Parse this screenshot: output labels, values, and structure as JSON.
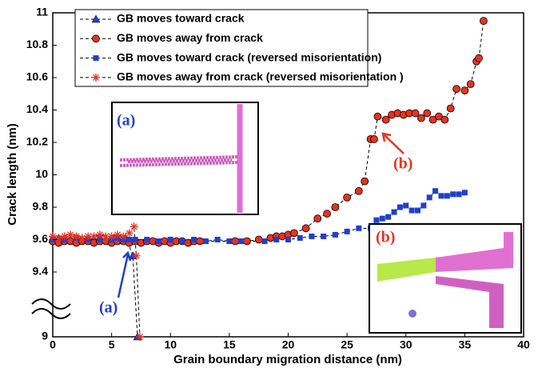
{
  "chart_data": {
    "type": "line",
    "xlabel": "Grain boundary migration distance (nm)",
    "ylabel": "Crack length (nm)",
    "xlim": [
      0,
      40
    ],
    "ylim": [
      9,
      11
    ],
    "xticks": [
      0,
      5,
      10,
      15,
      20,
      25,
      30,
      35,
      40
    ],
    "yticks": [
      9,
      9.4,
      9.6,
      9.8,
      10,
      10.2,
      10.4,
      10.6,
      10.8,
      11
    ],
    "line_color": "#000000",
    "series": [
      {
        "name": "GB moves toward crack",
        "color": "#1f3fd0",
        "marker": "triangle",
        "x": [
          0,
          0.5,
          1,
          1.5,
          2,
          2.5,
          3,
          3.5,
          4,
          4.5,
          5,
          5.5,
          6,
          6.3,
          6.8,
          7.2
        ],
        "values": [
          9.6,
          9.61,
          9.6,
          9.6,
          9.61,
          9.6,
          9.6,
          9.6,
          9.61,
          9.6,
          9.6,
          9.61,
          9.6,
          9.6,
          9.5,
          9.0
        ]
      },
      {
        "name": "GB moves away from crack",
        "color": "#e8321e",
        "marker": "circle",
        "x": [
          0,
          0.5,
          1,
          1.5,
          2,
          2.5,
          3,
          3.5,
          4,
          4.5,
          5,
          5.5,
          6,
          6.5,
          7,
          7.5,
          8,
          8.5,
          9,
          9.5,
          10,
          10.5,
          11,
          11.5,
          12,
          12.5,
          15.5,
          16.5,
          17.5,
          18.5,
          19,
          19.5,
          20,
          20.5,
          21.5,
          22.5,
          23.3,
          24,
          25,
          26,
          26.5,
          27,
          27.3,
          27.6,
          28.3,
          28.8,
          29.3,
          29.8,
          30.3,
          30.8,
          31.3,
          31.8,
          32.3,
          32.8,
          33.3,
          33.8,
          34.3,
          35,
          35.5,
          36,
          36.2,
          36.6
        ],
        "values": [
          9.59,
          9.58,
          9.59,
          9.59,
          9.58,
          9.59,
          9.59,
          9.58,
          9.59,
          9.59,
          9.58,
          9.59,
          9.59,
          9.58,
          9.59,
          9.58,
          9.59,
          9.59,
          9.58,
          9.59,
          9.58,
          9.59,
          9.59,
          9.58,
          9.59,
          9.59,
          9.59,
          9.59,
          9.6,
          9.61,
          9.62,
          9.62,
          9.63,
          9.64,
          9.67,
          9.73,
          9.76,
          9.8,
          9.86,
          9.9,
          9.96,
          10.22,
          10.22,
          10.36,
          10.34,
          10.37,
          10.38,
          10.37,
          10.38,
          10.38,
          10.35,
          10.38,
          10.34,
          10.36,
          10.34,
          10.41,
          10.53,
          10.52,
          10.56,
          10.7,
          10.72,
          10.95
        ]
      },
      {
        "name": "GB moves toward crack (reversed misorientation)",
        "color": "#1f3fd0",
        "marker": "square",
        "x": [
          0,
          1,
          2,
          3,
          4,
          5,
          5.5,
          6,
          6.5,
          7,
          8,
          9,
          10,
          11,
          12,
          13,
          14,
          15,
          16,
          18,
          19,
          20,
          21,
          22,
          23,
          24,
          25,
          26,
          27,
          27.5,
          28,
          28.5,
          29,
          29.5,
          30,
          30.5,
          31,
          31.5,
          32,
          32.5,
          33,
          33.5,
          34,
          34.5,
          35
        ],
        "values": [
          9.6,
          9.6,
          9.61,
          9.6,
          9.6,
          9.6,
          9.61,
          9.6,
          9.6,
          9.6,
          9.6,
          9.59,
          9.6,
          9.59,
          9.6,
          9.59,
          9.6,
          9.59,
          9.59,
          9.59,
          9.6,
          9.6,
          9.61,
          9.62,
          9.62,
          9.63,
          9.65,
          9.67,
          9.67,
          9.72,
          9.73,
          9.74,
          9.77,
          9.8,
          9.81,
          9.78,
          9.78,
          9.81,
          9.86,
          9.9,
          9.87,
          9.87,
          9.88,
          9.88,
          9.89
        ]
      },
      {
        "name": "GB moves away from crack (reversed misorientation )",
        "color": "#e8321e",
        "marker": "star",
        "x": [
          0,
          0.5,
          1,
          1.5,
          2,
          2.5,
          3,
          3.5,
          4,
          4.5,
          5,
          5.5,
          6,
          6.5,
          6.9,
          7.1,
          7.4
        ],
        "values": [
          9.62,
          9.61,
          9.62,
          9.63,
          9.62,
          9.61,
          9.62,
          9.62,
          9.63,
          9.62,
          9.62,
          9.63,
          9.62,
          9.64,
          9.68,
          9.5,
          9.0
        ]
      }
    ],
    "annotations": [
      {
        "text": "(a)",
        "color": "#1f3fd0"
      },
      {
        "text": "(b)",
        "color": "#e8321e"
      }
    ],
    "insets": [
      {
        "label": "(a)",
        "color": "#1f3fd0"
      },
      {
        "label": "(b)",
        "color": "#e8321e"
      }
    ]
  }
}
